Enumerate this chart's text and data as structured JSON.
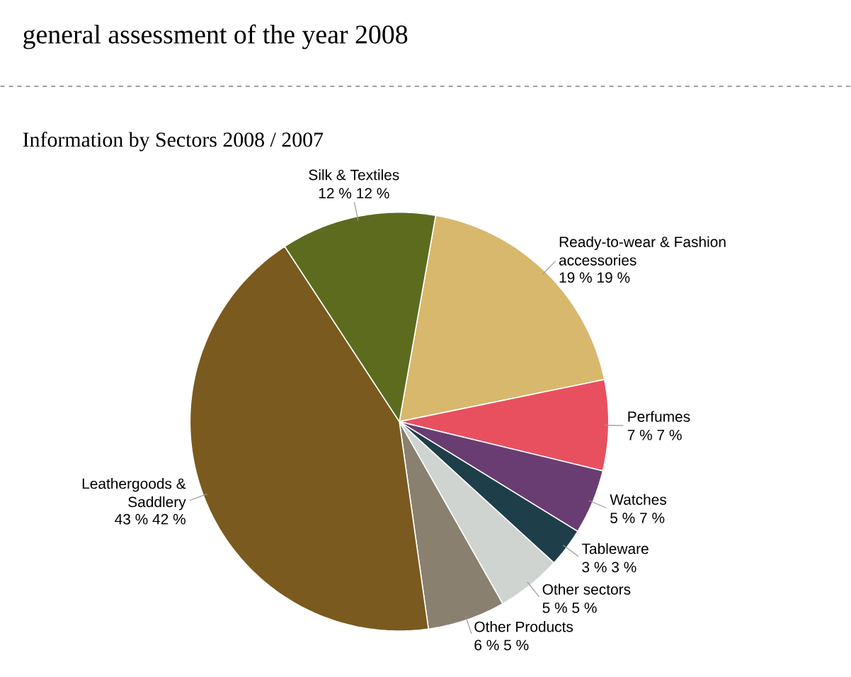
{
  "chart_data": {
    "type": "pie",
    "title": "general assessment of the year 2008",
    "subtitle": "Information by Sectors 2008 / 2007",
    "categories": [
      "Ready-to-wear & Fashion accessories",
      "Perfumes",
      "Watches",
      "Tableware",
      "Other sectors",
      "Other Products",
      "Leathergoods & Saddlery",
      "Silk & Textiles"
    ],
    "values": [
      19,
      7,
      5,
      3,
      5,
      6,
      43,
      12
    ],
    "colors": [
      "#d8b86c",
      "#e8505f",
      "#6a3d72",
      "#1e3e4a",
      "#d0d4d0",
      "#8a8070",
      "#7a5a1e",
      "#5c6b1e"
    ],
    "value_labels": [
      "19 %  19 %",
      "7 %  7 %",
      "5 %  7 %",
      "3 %  3 %",
      "5 %  5 %",
      "6 %  5 %",
      "43 %  42 %",
      "12 %  12 %"
    ]
  }
}
